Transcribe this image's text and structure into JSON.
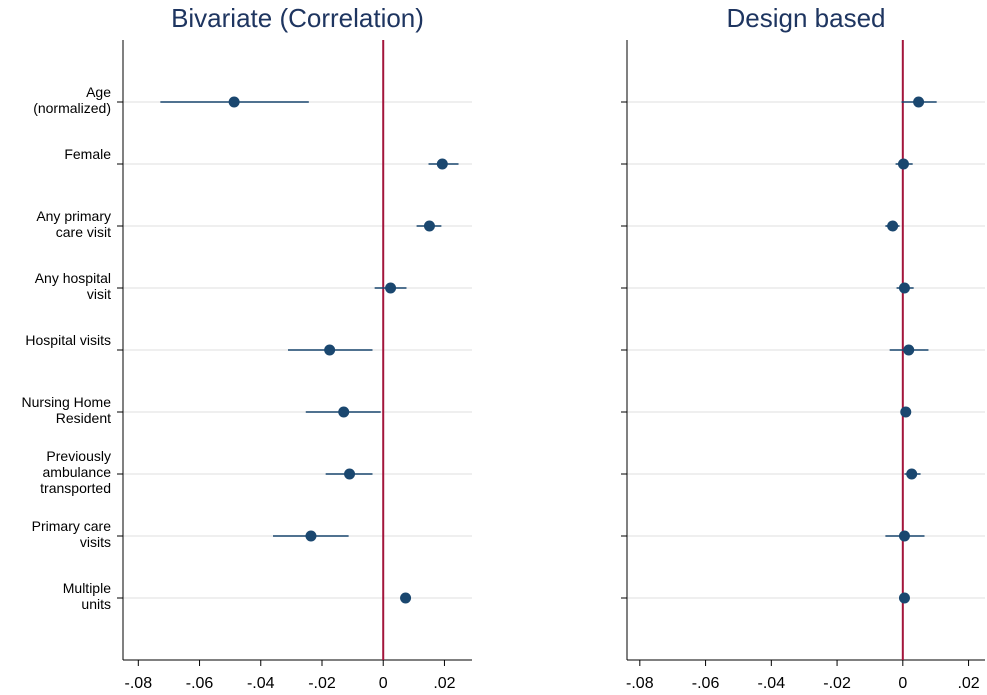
{
  "chart_data": [
    {
      "type": "coefplot",
      "title": "Bivariate (Correlation)",
      "categories": [
        [
          "Age",
          "(normalized)"
        ],
        [
          "Female"
        ],
        [
          "Any primary",
          "care visit"
        ],
        [
          "Any hospital",
          "visit"
        ],
        [
          "Hospital visits"
        ],
        [
          "Nursing Home",
          "Resident"
        ],
        [
          "Previously",
          "ambulance",
          "transported"
        ],
        [
          "Primary care",
          "visits"
        ],
        [
          "Multiple",
          "units"
        ]
      ],
      "values": [
        -0.0487,
        0.0193,
        0.0151,
        0.0024,
        -0.0175,
        -0.0129,
        -0.011,
        -0.0236,
        0.0073
      ],
      "lower": [
        -0.0728,
        0.0148,
        0.0109,
        -0.0028,
        -0.0311,
        -0.0253,
        -0.0188,
        -0.036,
        0.0065
      ],
      "upper": [
        -0.0243,
        0.0246,
        0.019,
        0.0076,
        -0.0035,
        -0.0008,
        -0.0035,
        -0.0113,
        0.0081
      ],
      "color": "#1a476f",
      "xline": 0,
      "xline_color": "#a3153b",
      "grid": true,
      "xlim": [
        -0.085,
        0.029
      ],
      "xticks": [
        {
          "value": -0.08,
          "label": "-.08"
        },
        {
          "value": -0.06,
          "label": "-.06"
        },
        {
          "value": -0.04,
          "label": "-.04"
        },
        {
          "value": -0.02,
          "label": "-.02"
        },
        0,
        {
          "value": 0.02,
          "label": ".02"
        }
      ]
    },
    {
      "type": "coefplot",
      "title": "Design based",
      "categories": [
        null,
        null,
        null,
        null,
        null,
        null,
        null,
        null,
        null
      ],
      "values": [
        0.0048,
        0.0002,
        -0.0031,
        0.0005,
        0.0018,
        0.0009,
        0.0027,
        0.0005,
        0.0005
      ],
      "lower": [
        -0.0004,
        -0.0022,
        -0.0053,
        -0.0019,
        -0.004,
        -0.0001,
        0.0005,
        -0.0053,
        -0.0004
      ],
      "upper": [
        0.0103,
        0.003,
        -0.001,
        0.0033,
        0.0078,
        0.0018,
        0.0054,
        0.0066,
        0.0014
      ],
      "color": "#1a476f",
      "xline": 0,
      "xline_color": "#a3153b",
      "grid": true,
      "xlim": [
        -0.0839,
        0.025
      ],
      "xticks": [
        {
          "value": -0.08,
          "label": "-.08"
        },
        {
          "value": -0.06,
          "label": "-.06"
        },
        {
          "value": -0.04,
          "label": "-.04"
        },
        {
          "value": -0.02,
          "label": "-.02"
        },
        0,
        {
          "value": 0.02,
          "label": ".02"
        }
      ]
    }
  ]
}
